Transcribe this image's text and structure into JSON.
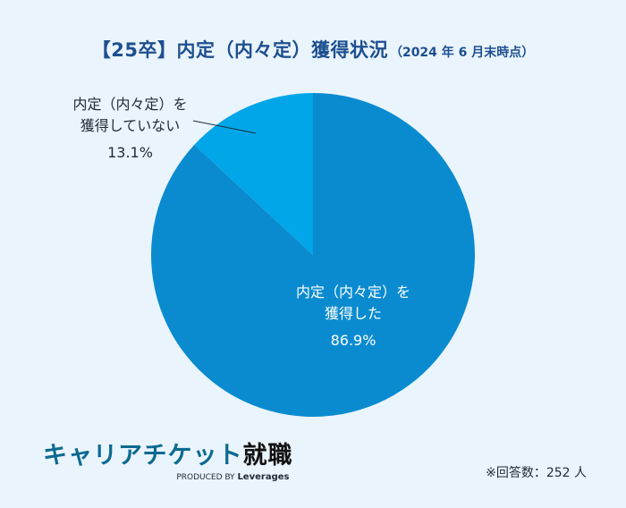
{
  "title": {
    "main": "【25卒】内定（内々定）獲得状況",
    "sub": "（2024 年 6 月末時点）"
  },
  "chart_data": {
    "type": "pie",
    "categories": [
      "内定（内々定）を獲得した",
      "内定（内々定）を獲得していない"
    ],
    "values": [
      86.9,
      13.1
    ],
    "value_labels": [
      "86.9%",
      "13.1%"
    ],
    "colors": [
      "#0a8bd0",
      "#00a6e8"
    ],
    "start_angle": "12 o'clock",
    "direction": "clockwise"
  },
  "labels": {
    "minor": {
      "line1": "内定（内々定）を",
      "line2": "獲得していない",
      "pct": "13.1%"
    },
    "major": {
      "line1": "内定（内々定）を",
      "line2": "獲得した",
      "pct": "86.9%"
    }
  },
  "brand": {
    "name": "キャリアチケット",
    "name_accent": "就職",
    "produced_by": "PRODUCED BY",
    "company": "Leverages"
  },
  "footnote": "※回答数：252 人",
  "colors": {
    "background": "#eaf4fd",
    "title": "#1d4f8f",
    "brand": "#0c6a91"
  }
}
